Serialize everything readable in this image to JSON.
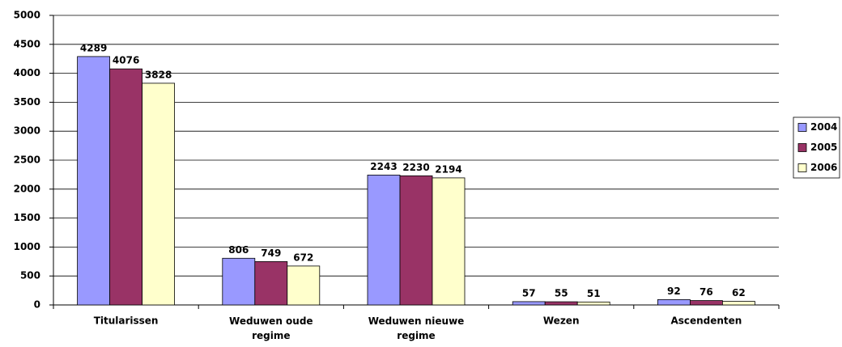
{
  "chart_data": {
    "type": "bar",
    "categories": [
      "Titularissen",
      "Weduwen oude regime",
      "Weduwen nieuwe regime",
      "Wezen",
      "Ascendenten"
    ],
    "series": [
      {
        "name": "2004",
        "color": "#9999ff",
        "values": [
          4289,
          806,
          2243,
          57,
          92
        ]
      },
      {
        "name": "2005",
        "color": "#993366",
        "values": [
          4076,
          749,
          2230,
          55,
          76
        ]
      },
      {
        "name": "2006",
        "color": "#ffffcc",
        "values": [
          3828,
          672,
          2194,
          51,
          62
        ]
      }
    ],
    "ylim": [
      0,
      5000
    ],
    "yticks": [
      0,
      500,
      1000,
      1500,
      2000,
      2500,
      3000,
      3500,
      4000,
      4500,
      5000
    ],
    "grid": true,
    "legend": "right"
  }
}
